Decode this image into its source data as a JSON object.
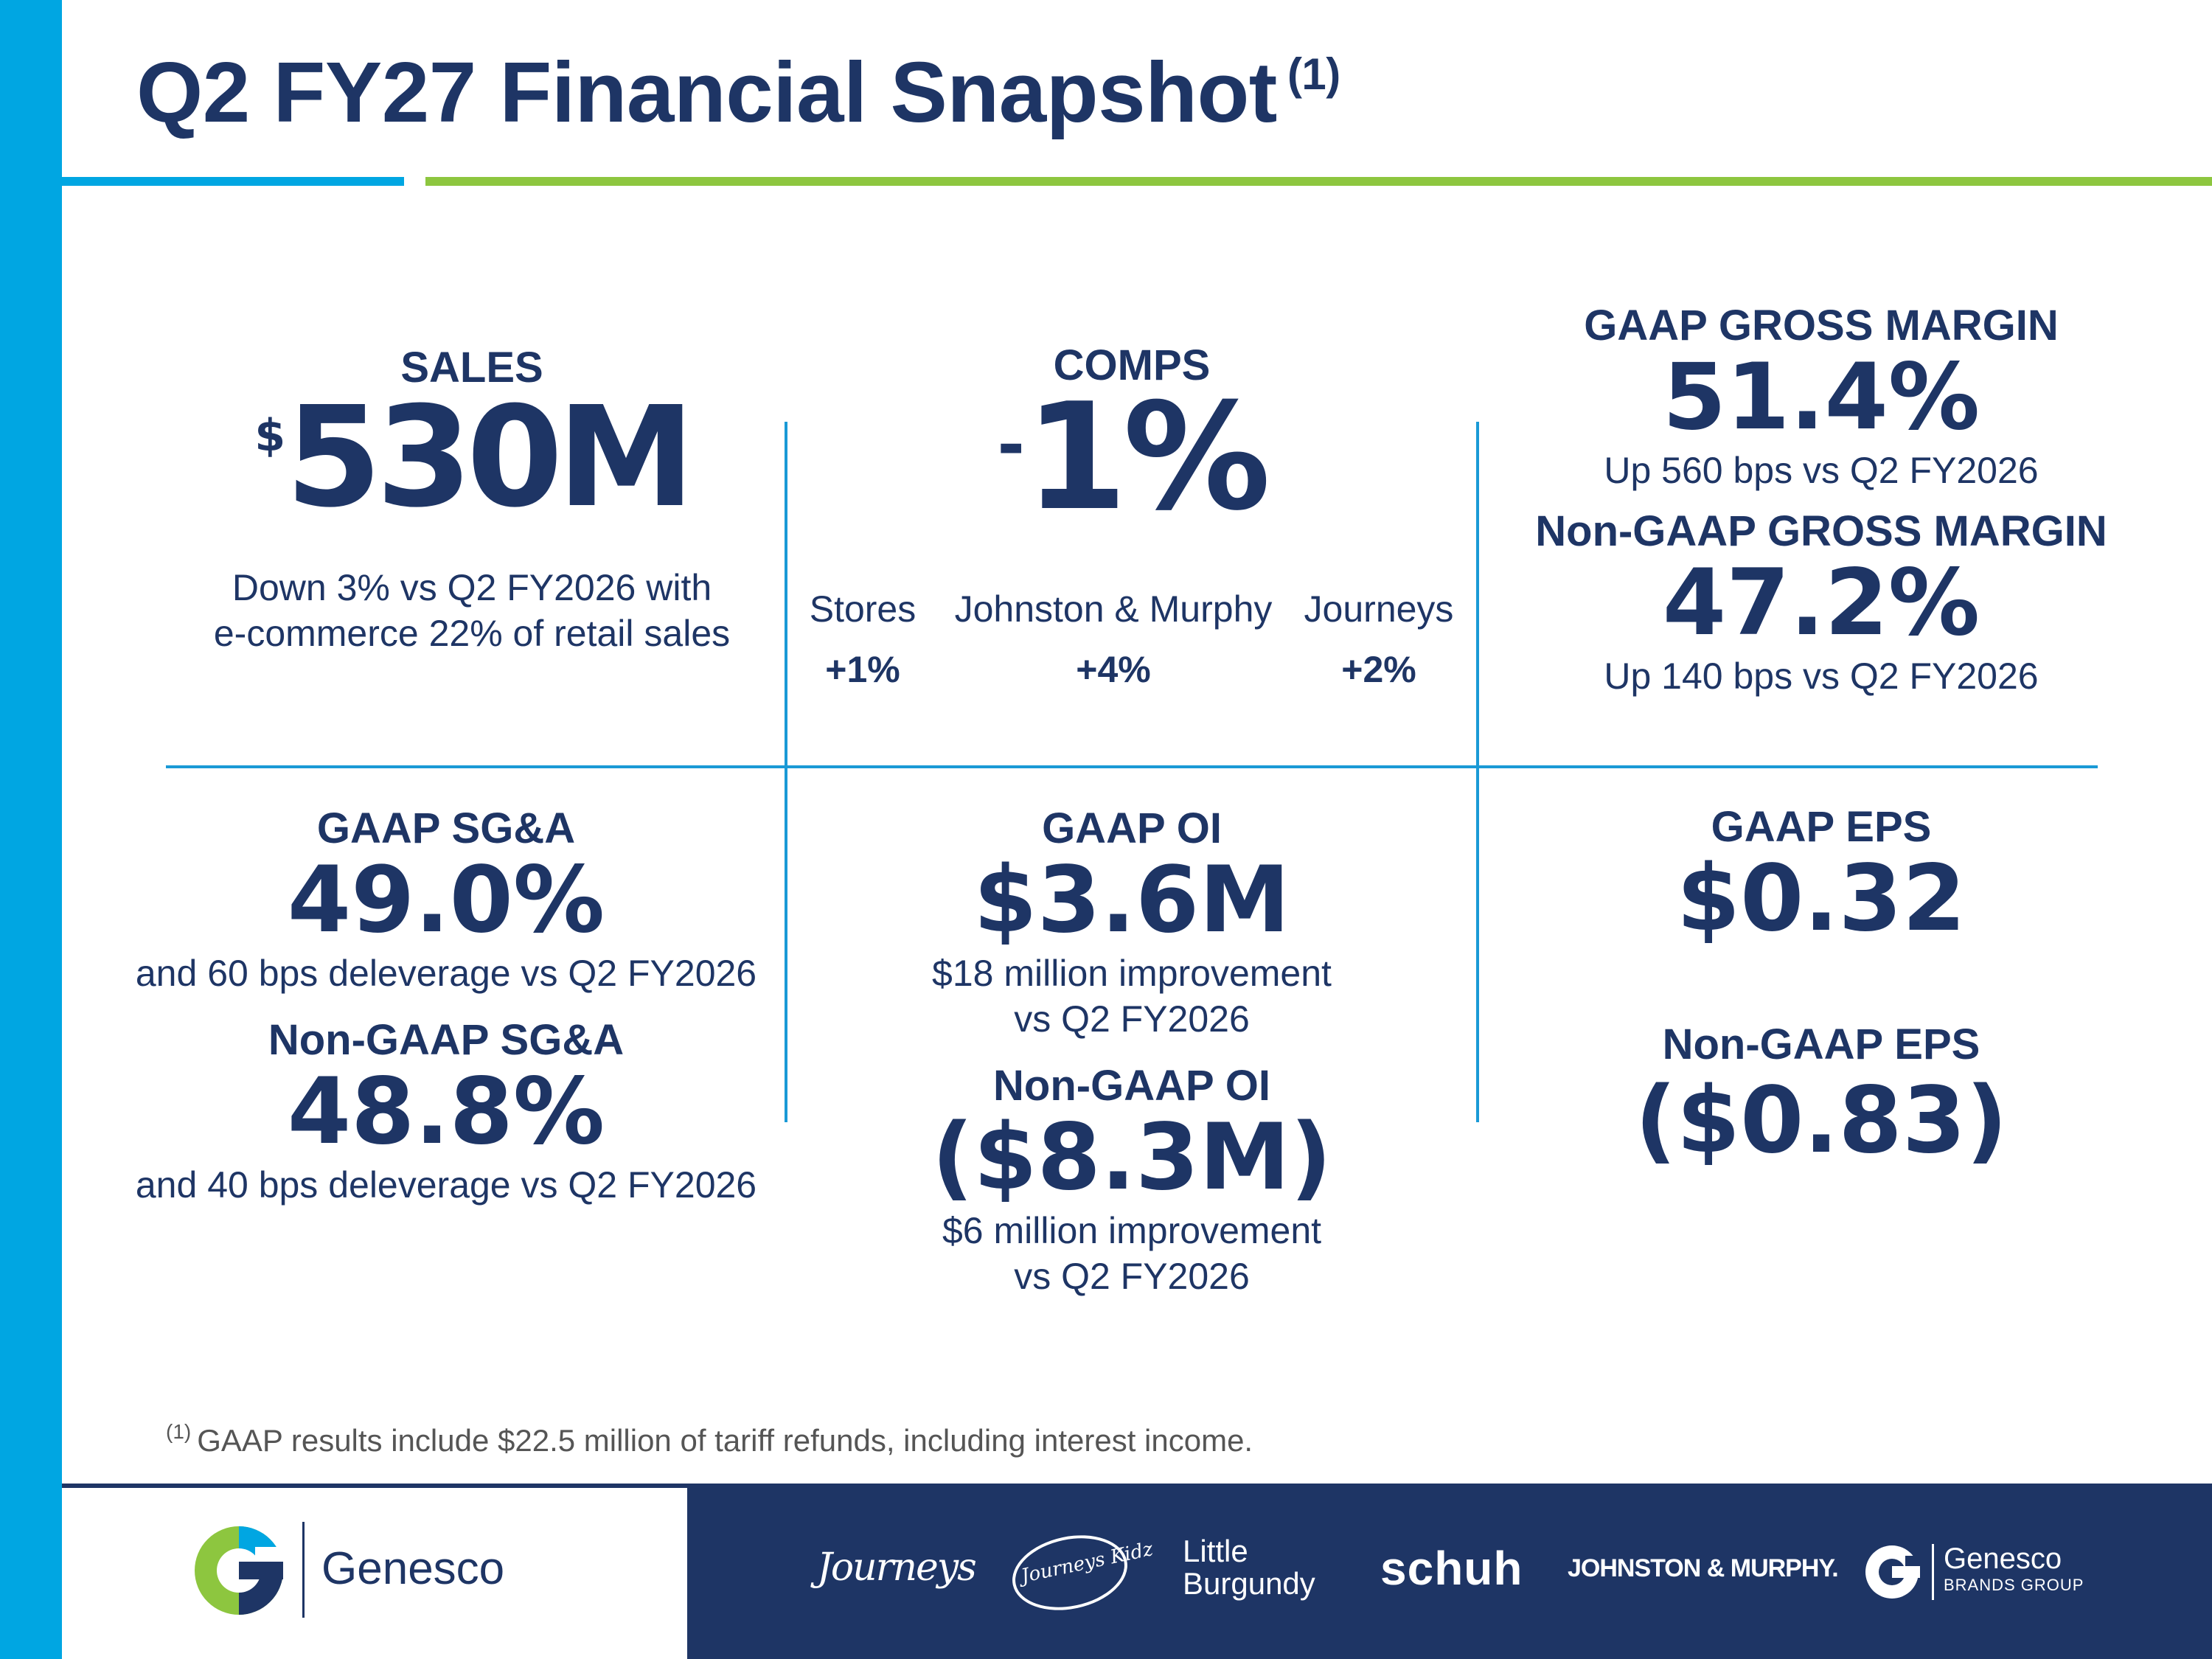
{
  "title": {
    "text": "Q2 FY27 Financial Snapshot",
    "footnote_marker": "(1)"
  },
  "sales": {
    "label": "SALES",
    "currency": "$",
    "value": "530M",
    "desc_line1": "Down 3% vs Q2 FY2026 with",
    "desc_line2": "e-commerce 22% of retail sales"
  },
  "comps": {
    "label": "COMPS",
    "sign": "-",
    "value": "1%",
    "breakdown": [
      {
        "name": "Stores",
        "value": "+1%"
      },
      {
        "name": "Johnston & Murphy",
        "value": "+4%"
      },
      {
        "name": "Journeys",
        "value": "+2%"
      }
    ]
  },
  "gross_margin": {
    "gaap_label": "GAAP GROSS MARGIN",
    "gaap_value": "51.4%",
    "gaap_desc": "Up 560 bps vs Q2 FY2026",
    "nongaap_label": "Non-GAAP GROSS MARGIN",
    "nongaap_value": "47.2%",
    "nongaap_desc": "Up 140 bps vs Q2 FY2026"
  },
  "sga": {
    "gaap_label": "GAAP SG&A",
    "gaap_value": "49.0%",
    "gaap_desc": "and 60 bps deleverage vs Q2 FY2026",
    "nongaap_label": "Non-GAAP SG&A",
    "nongaap_value": "48.8%",
    "nongaap_desc": "and 40 bps deleverage vs Q2 FY2026"
  },
  "oi": {
    "gaap_label": "GAAP OI",
    "gaap_value": "$3.6M",
    "gaap_desc_line1": "$18 million improvement",
    "gaap_desc_line2": "vs Q2 FY2026",
    "nongaap_label": "Non-GAAP OI",
    "nongaap_value": "($8.3M)",
    "nongaap_desc_line1": "$6 million improvement",
    "nongaap_desc_line2": "vs Q2 FY2026"
  },
  "eps": {
    "gaap_label": "GAAP EPS",
    "gaap_value": "$0.32",
    "nongaap_label": "Non-GAAP EPS",
    "nongaap_value": "($0.83)"
  },
  "footnote": {
    "marker": "(1)",
    "text": "GAAP results include $22.5 million of tariff refunds, including interest income."
  },
  "footer": {
    "company": "Genesco",
    "brands": [
      "Journeys",
      "Journeys Kidz",
      "Little",
      "Burgundy",
      "schuh",
      "JOHNSTON & MURPHY.",
      "Genesco",
      "BRANDS GROUP"
    ]
  },
  "colors": {
    "navy": "#1e3565",
    "blue": "#00a6e2",
    "green": "#8dc63f",
    "rule": "#1a9ad6"
  }
}
